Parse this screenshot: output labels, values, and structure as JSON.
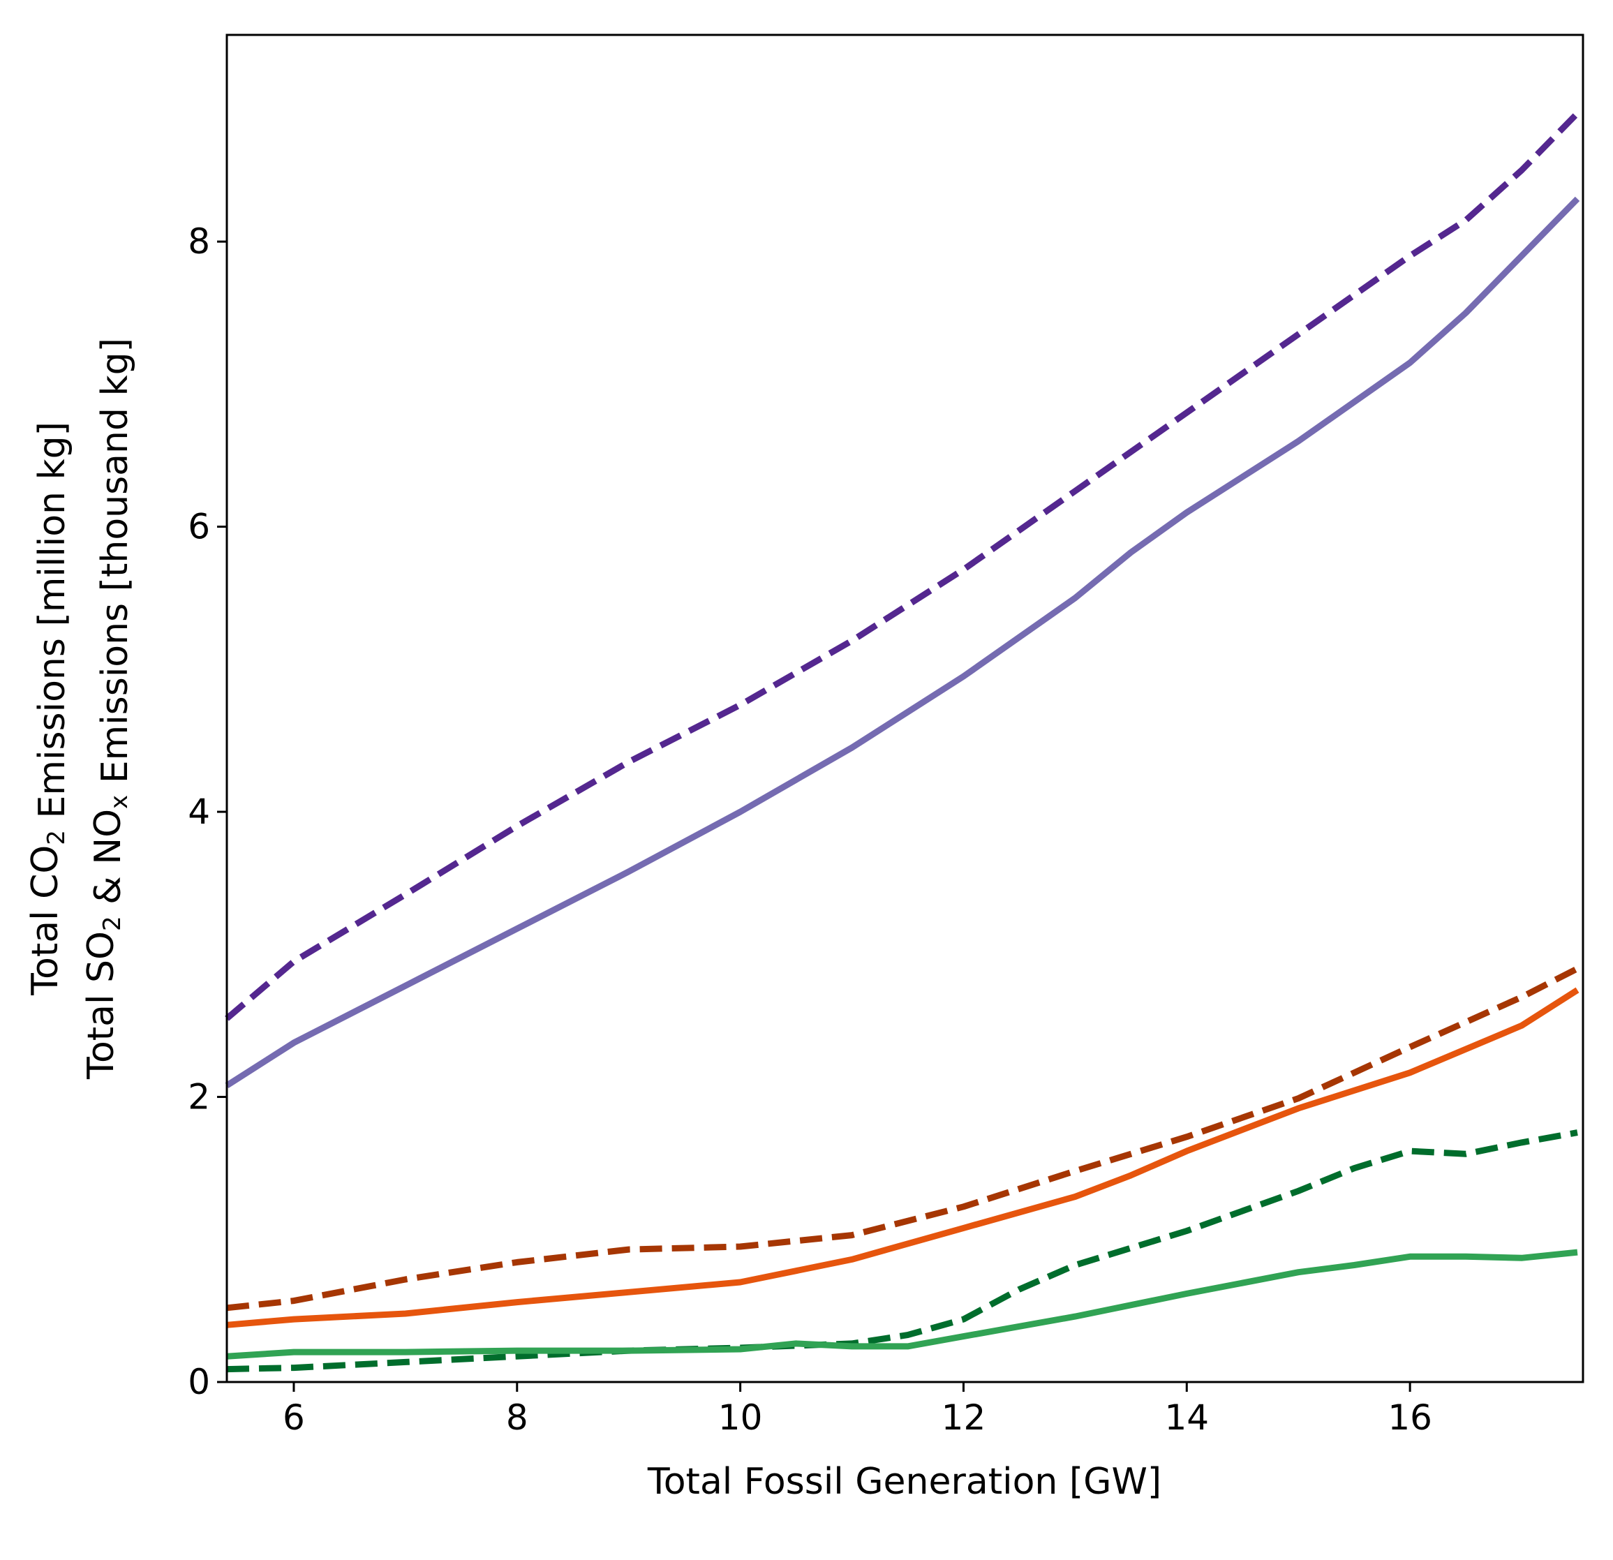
{
  "chart_data": {
    "type": "line",
    "xlabel": "Total Fossil Generation [GW]",
    "ylabel_lines": [
      {
        "pre": "Total CO",
        "sub1": "2",
        "post": " Emissions [million kg]"
      },
      {
        "pre": "Total SO",
        "sub1": "2",
        "mid": " & NO",
        "sub2": "x",
        "post": " Emissions [thousand kg]"
      }
    ],
    "xlim": [
      5.4,
      17.55
    ],
    "ylim": [
      0,
      9.45
    ],
    "x_ticks": [
      6,
      8,
      10,
      12,
      14,
      16
    ],
    "y_ticks": [
      0,
      2,
      4,
      6,
      8
    ],
    "x_tick_labels": [
      "6",
      "8",
      "10",
      "12",
      "14",
      "16"
    ],
    "y_tick_labels": [
      "0",
      "2",
      "4",
      "6",
      "8"
    ],
    "grid": false,
    "legend": "none",
    "series": [
      {
        "style": "dashed",
        "color": "#54278f",
        "x": [
          5.4,
          6.0,
          7.0,
          8.0,
          9.0,
          10.0,
          11.0,
          12.0,
          13.0,
          14.0,
          15.0,
          16.0,
          16.5,
          17.0,
          17.5
        ],
        "y": [
          2.55,
          2.95,
          3.42,
          3.9,
          4.35,
          4.75,
          5.2,
          5.7,
          6.25,
          6.8,
          7.35,
          7.9,
          8.15,
          8.5,
          8.9
        ]
      },
      {
        "style": "solid",
        "color": "#756bb1",
        "x": [
          5.4,
          6.0,
          7.0,
          8.0,
          9.0,
          10.0,
          11.0,
          12.0,
          13.0,
          13.5,
          14.0,
          15.0,
          16.0,
          16.5,
          17.0,
          17.5
        ],
        "y": [
          2.08,
          2.38,
          2.78,
          3.18,
          3.58,
          4.0,
          4.45,
          4.95,
          5.5,
          5.82,
          6.1,
          6.6,
          7.15,
          7.5,
          7.9,
          8.3
        ]
      },
      {
        "style": "dashed",
        "color": "#a63603",
        "x": [
          5.4,
          6.0,
          7.0,
          8.0,
          9.0,
          10.0,
          11.0,
          12.0,
          13.0,
          14.0,
          15.0,
          16.0,
          17.0,
          17.5
        ],
        "y": [
          0.52,
          0.57,
          0.72,
          0.84,
          0.93,
          0.95,
          1.03,
          1.23,
          1.48,
          1.72,
          1.99,
          2.35,
          2.7,
          2.9
        ]
      },
      {
        "style": "solid",
        "color": "#e6550d",
        "x": [
          5.4,
          6.0,
          7.0,
          8.0,
          9.0,
          10.0,
          11.0,
          12.0,
          13.0,
          13.5,
          14.0,
          15.0,
          16.0,
          17.0,
          17.5
        ],
        "y": [
          0.4,
          0.44,
          0.48,
          0.56,
          0.63,
          0.7,
          0.86,
          1.08,
          1.3,
          1.45,
          1.62,
          1.92,
          2.17,
          2.5,
          2.75
        ]
      },
      {
        "style": "dashed",
        "color": "#006d2c",
        "x": [
          5.4,
          6.0,
          7.0,
          8.0,
          9.0,
          10.0,
          11.0,
          11.5,
          12.0,
          12.5,
          13.0,
          14.0,
          15.0,
          15.5,
          16.0,
          16.5,
          17.0,
          17.5
        ],
        "y": [
          0.09,
          0.1,
          0.14,
          0.18,
          0.22,
          0.24,
          0.27,
          0.33,
          0.44,
          0.65,
          0.82,
          1.06,
          1.34,
          1.5,
          1.62,
          1.6,
          1.68,
          1.75
        ]
      },
      {
        "style": "solid",
        "color": "#31a354",
        "x": [
          5.4,
          6.0,
          7.0,
          8.0,
          9.0,
          10.0,
          10.5,
          11.0,
          11.5,
          12.0,
          13.0,
          14.0,
          15.0,
          15.5,
          16.0,
          16.5,
          17.0,
          17.5
        ],
        "y": [
          0.18,
          0.21,
          0.21,
          0.22,
          0.22,
          0.23,
          0.27,
          0.25,
          0.25,
          0.32,
          0.46,
          0.62,
          0.77,
          0.82,
          0.88,
          0.88,
          0.87,
          0.91
        ]
      }
    ]
  }
}
